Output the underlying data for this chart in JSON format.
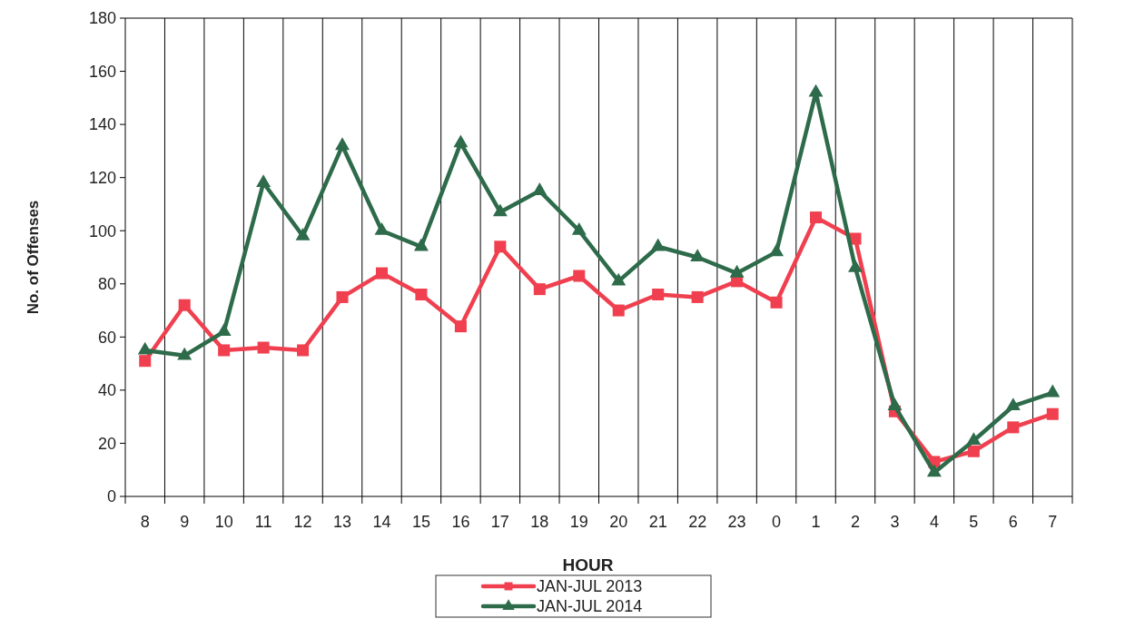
{
  "chart_data": {
    "type": "line",
    "xlabel": "HOUR",
    "ylabel": "No. of Offenses",
    "categories": [
      "8",
      "9",
      "10",
      "11",
      "12",
      "13",
      "14",
      "15",
      "16",
      "17",
      "18",
      "19",
      "20",
      "21",
      "22",
      "23",
      "0",
      "1",
      "2",
      "3",
      "4",
      "5",
      "6",
      "7"
    ],
    "series": [
      {
        "name": "JAN-JUL 2013",
        "color": "#f0404f",
        "marker": "square",
        "values": [
          51,
          72,
          55,
          56,
          55,
          75,
          84,
          76,
          64,
          94,
          78,
          83,
          70,
          76,
          75,
          81,
          73,
          105,
          97,
          32,
          13,
          17,
          26,
          31
        ]
      },
      {
        "name": "JAN-JUL 2014",
        "color": "#2e6b4a",
        "marker": "triangle",
        "values": [
          55,
          53,
          62,
          118,
          98,
          132,
          100,
          94,
          133,
          107,
          115,
          100,
          81,
          94,
          90,
          84,
          92,
          152,
          86,
          34,
          9,
          21,
          34,
          39
        ]
      }
    ],
    "ylim": [
      0,
      180
    ],
    "yticks": [
      0,
      20,
      40,
      60,
      80,
      100,
      120,
      140,
      160,
      180
    ],
    "grid": "x",
    "legend": "bottom",
    "line_style": "solid"
  }
}
